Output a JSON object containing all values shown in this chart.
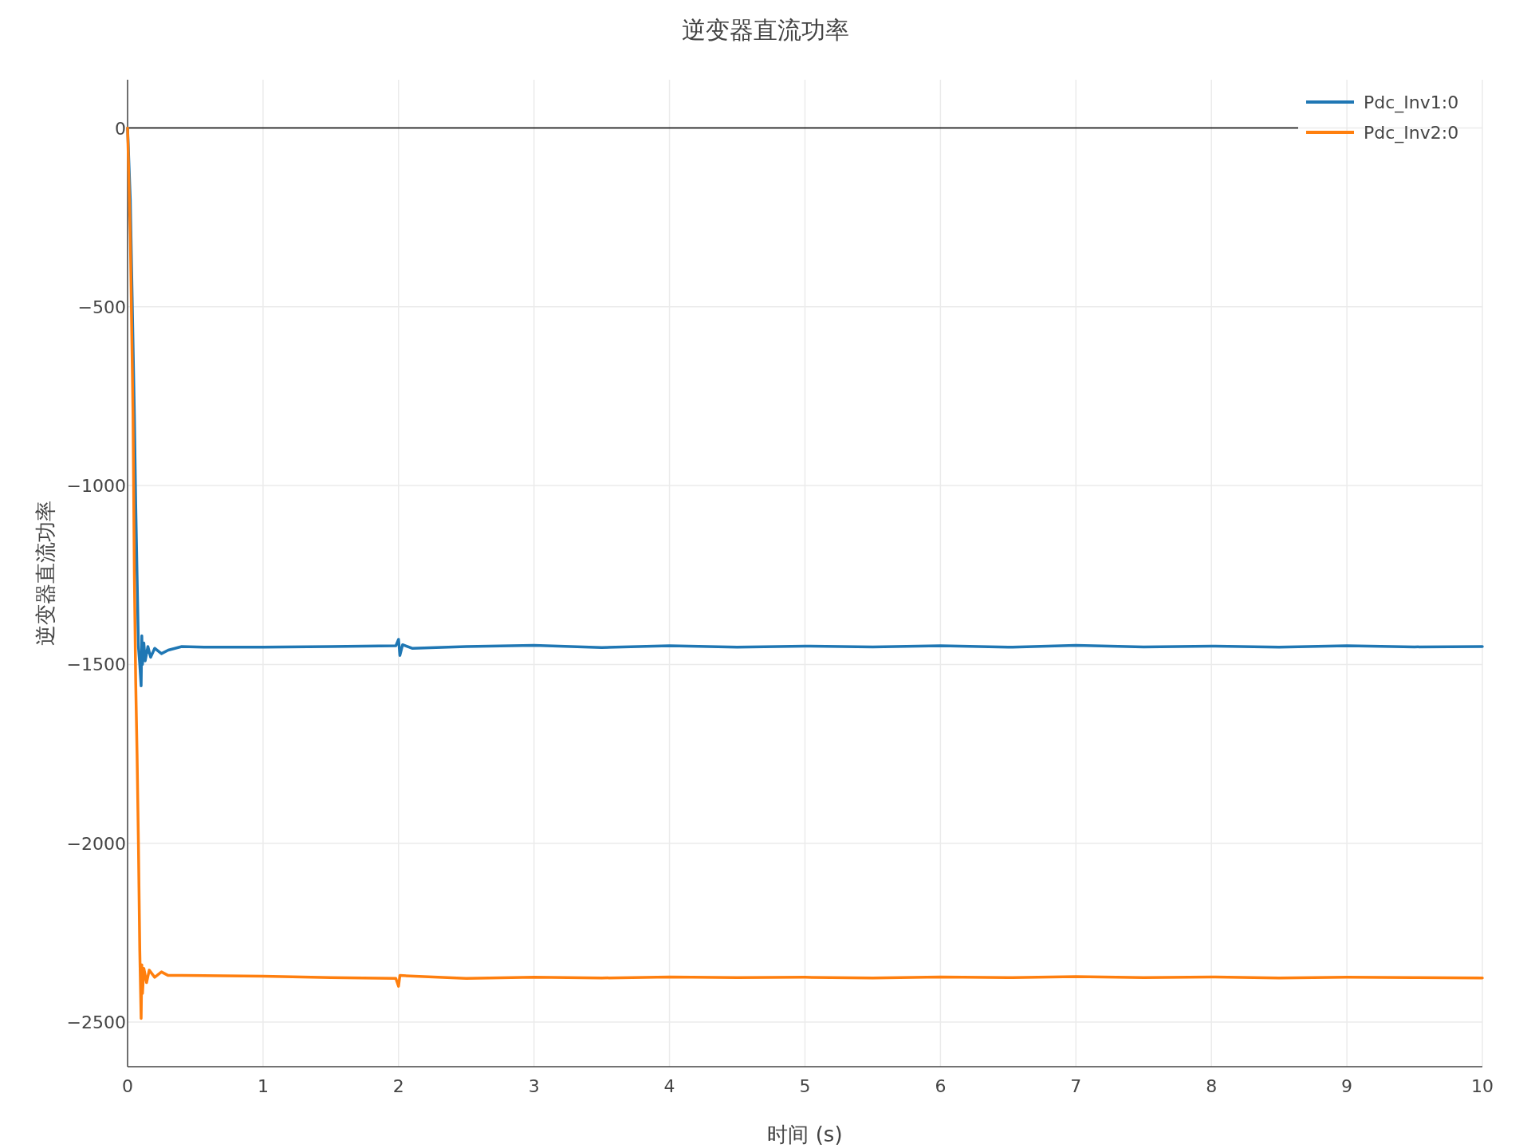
{
  "chart_data": {
    "type": "line",
    "title": "逆变器直流功率",
    "xlabel": "时间 (s)",
    "ylabel": "逆变器直流功率",
    "xlim": [
      0,
      10
    ],
    "ylim": [
      -2625,
      135
    ],
    "xticks": [
      0,
      1,
      2,
      3,
      4,
      5,
      6,
      7,
      8,
      9,
      10
    ],
    "yticks": [
      {
        "value": 0,
        "label": "0"
      },
      {
        "value": -500,
        "label": "−500"
      },
      {
        "value": -1000,
        "label": "−1000"
      },
      {
        "value": -1500,
        "label": "−1500"
      },
      {
        "value": -2000,
        "label": "−2000"
      },
      {
        "value": -2500,
        "label": "−2500"
      }
    ],
    "grid": true,
    "legend": "top right",
    "line_style": "solid",
    "marker": "none",
    "ref_lines": [
      {
        "axis": "y",
        "value": 0,
        "color": "#000000"
      }
    ],
    "series": [
      {
        "name": "Pdc_Inv1:0",
        "color": "#1f77b4",
        "x": [
          0,
          0.02,
          0.04,
          0.05,
          0.06,
          0.07,
          0.08,
          0.09,
          0.1,
          0.105,
          0.11,
          0.12,
          0.13,
          0.15,
          0.17,
          0.2,
          0.25,
          0.3,
          0.35,
          0.4,
          0.6,
          1.0,
          1.5,
          1.98,
          2.0,
          2.01,
          2.03,
          2.1,
          2.5,
          3,
          3.5,
          4,
          4.5,
          5,
          5.5,
          6,
          6.5,
          7,
          7.5,
          8,
          8.5,
          9,
          9.5,
          10
        ],
        "values": [
          0,
          -200,
          -600,
          -800,
          -1050,
          -1250,
          -1450,
          -1500,
          -1560,
          -1420,
          -1500,
          -1440,
          -1490,
          -1450,
          -1480,
          -1455,
          -1470,
          -1460,
          -1455,
          -1450,
          -1452,
          -1452,
          -1450,
          -1448,
          -1430,
          -1475,
          -1445,
          -1455,
          -1450,
          -1447,
          -1453,
          -1448,
          -1452,
          -1449,
          -1451,
          -1448,
          -1452,
          -1447,
          -1451,
          -1449,
          -1452,
          -1448,
          -1451,
          -1450
        ]
      },
      {
        "name": "Pdc_Inv2:0",
        "color": "#ff7f0e",
        "x": [
          0,
          0.02,
          0.04,
          0.05,
          0.06,
          0.07,
          0.08,
          0.09,
          0.1,
          0.105,
          0.11,
          0.12,
          0.14,
          0.16,
          0.2,
          0.25,
          0.3,
          0.4,
          1.0,
          1.5,
          1.98,
          2.0,
          2.01,
          2.5,
          3,
          3.5,
          4,
          4.5,
          5,
          5.5,
          6,
          6.5,
          7,
          7.5,
          8,
          8.5,
          9,
          9.5,
          10
        ],
        "values": [
          0,
          -300,
          -800,
          -1250,
          -1550,
          -1750,
          -2000,
          -2300,
          -2490,
          -2340,
          -2420,
          -2350,
          -2390,
          -2355,
          -2375,
          -2360,
          -2370,
          -2370,
          -2372,
          -2376,
          -2378,
          -2400,
          -2370,
          -2378,
          -2375,
          -2377,
          -2374,
          -2376,
          -2375,
          -2377,
          -2374,
          -2376,
          -2373,
          -2376,
          -2374,
          -2377,
          -2375,
          -2376,
          -2377
        ]
      }
    ]
  }
}
